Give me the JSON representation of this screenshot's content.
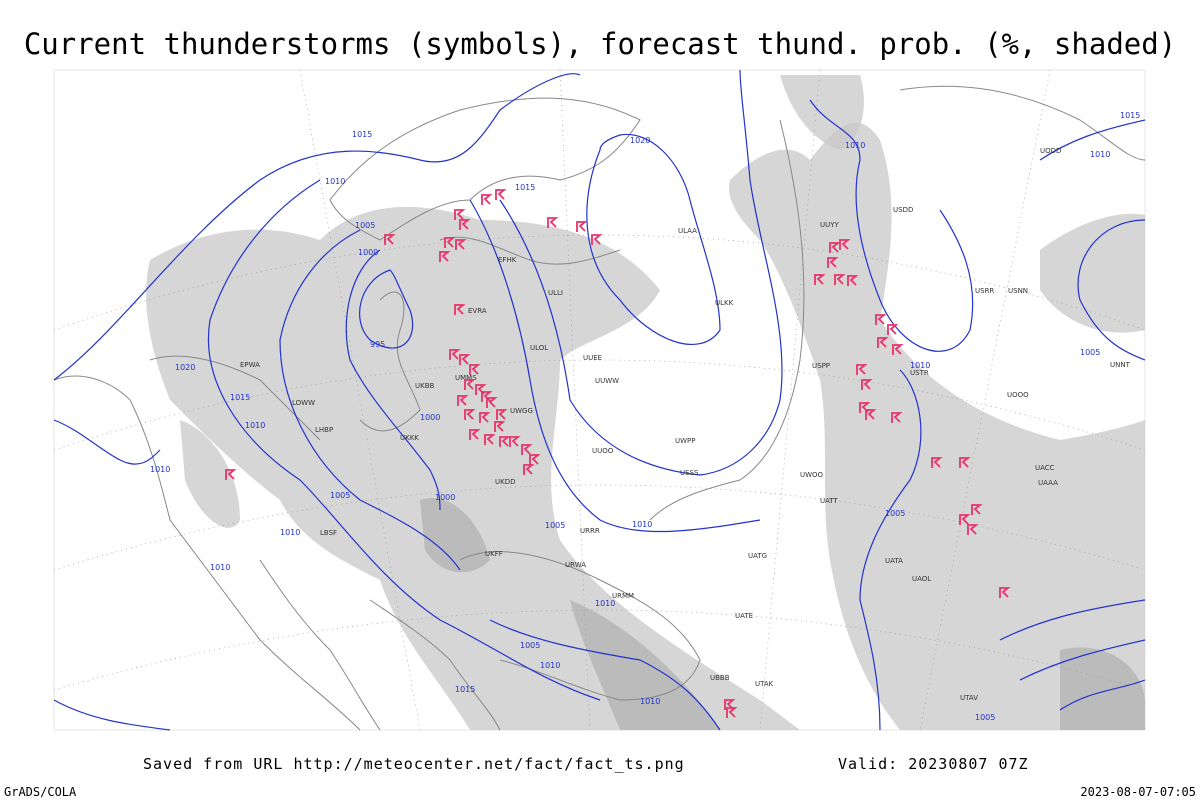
{
  "header": {
    "title": "Current thunderstorms (symbols), forecast thund. prob. (%, shaded)"
  },
  "footer": {
    "source": "Saved from URL http://meteocenter.net/fact/fact_ts.png",
    "valid": "Valid: 20230807 07Z",
    "credit": "GrADS/COLA",
    "timestamp": "2023-08-07-07:05"
  },
  "isobar_labels": [
    "1015",
    "1010",
    "1005",
    "1000",
    "995",
    "1020",
    "1015",
    "1010",
    "1000",
    "1000",
    "1005",
    "1010",
    "1015",
    "1020",
    "1010",
    "1015",
    "1010",
    "1005",
    "1005",
    "1010",
    "1010",
    "1010",
    "1005",
    "1010",
    "1005",
    "1010",
    "1010",
    "1015",
    "1010",
    "1005"
  ],
  "stations": [
    "ULLI",
    "ULAA",
    "EFHK",
    "EVRA",
    "ULOL",
    "UMMS",
    "UKKK",
    "UKBB",
    "UUEE",
    "UUWW",
    "UWGG",
    "UWPP",
    "UUOO",
    "URRR",
    "URWA",
    "UATG",
    "URMM",
    "UATE",
    "UBBB",
    "UTAK",
    "USPP",
    "USSS",
    "UWOO",
    "UATT",
    "USTR",
    "UACC",
    "UAAA",
    "USNN",
    "USRR",
    "UNNT",
    "UUYY",
    "ULKK",
    "EPWA",
    "LOWW",
    "LHBP",
    "LBSF",
    "UKDD",
    "UKFF",
    "UAOL",
    "UATA",
    "UTAV",
    "USDD",
    "UOOO",
    "UODD"
  ]
}
